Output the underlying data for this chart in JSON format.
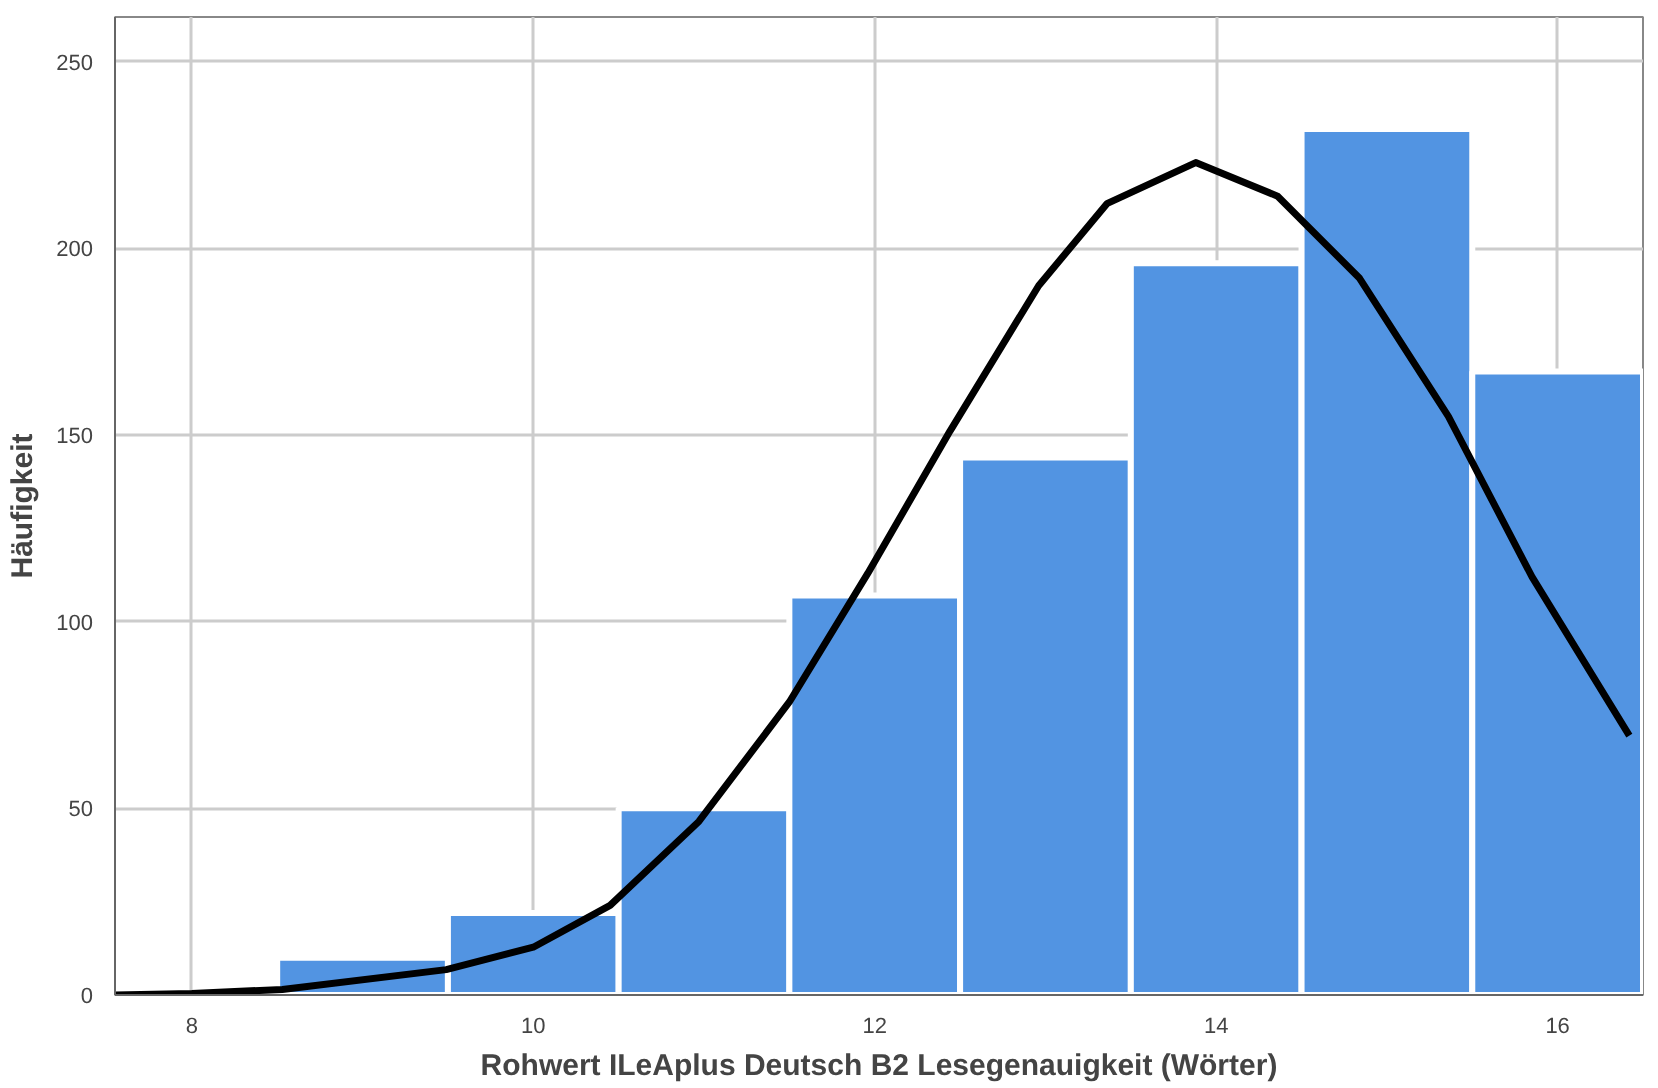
{
  "chart_data": {
    "type": "histogram",
    "xlabel": "Rohwert ILeAplus Deutsch B2 Lesegenauigkeit (Wörter)",
    "ylabel": "Häufigkeit",
    "bins": [
      8.5,
      9.5,
      10.5,
      11.5,
      12.5,
      13.5,
      14.5,
      15.5,
      16.5
    ],
    "values": [
      10,
      22,
      50,
      107,
      144,
      196,
      232,
      167
    ],
    "color": "#5294e2",
    "series": [
      {
        "type": "line",
        "color": "#000000",
        "x": [
          7.55,
          8.0,
          8.53,
          9.49,
          10.0,
          10.45,
          10.97,
          11.5,
          11.96,
          12.44,
          12.96,
          13.36,
          13.88,
          14.36,
          14.84,
          15.36,
          15.85,
          16.42
        ],
        "values": [
          0,
          0.4,
          1.5,
          6.8,
          12.8,
          24,
          46.5,
          78.5,
          113,
          151,
          190,
          212,
          223,
          214,
          192,
          155,
          112,
          69.5
        ]
      }
    ],
    "xlim": [
      7.55,
      16.5
    ],
    "ylim": [
      0,
      262
    ],
    "xticks": [
      8,
      10,
      12,
      14,
      16
    ],
    "yticks": [
      0,
      50,
      100,
      150,
      200,
      250
    ],
    "grid": true
  }
}
